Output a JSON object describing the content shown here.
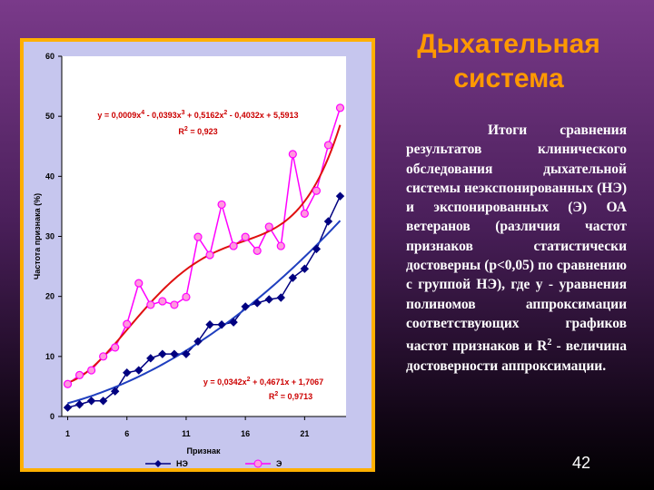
{
  "title": "Дыхательная система",
  "text_parts": [
    "Итоги сравнения результатов клинического обследования дыхательной системы неэкспонированных (НЭ) и экспонированных (Э) ОА ветеранов (различия частот признаков статистически достоверны (p<0,05) по сравнению с группой НЭ), где у - уравнения полиномов аппроксимации соответствующих графиков частот признаков и R",
    "2",
    " - величина достоверности аппроксимации."
  ],
  "page_number": "42",
  "chart_data": {
    "type": "line",
    "x_label": "Признак",
    "y_label": "Частота признака (%)",
    "x": [
      1,
      2,
      3,
      4,
      5,
      6,
      7,
      8,
      9,
      10,
      11,
      12,
      13,
      14,
      15,
      16,
      17,
      18,
      19,
      20,
      21,
      22,
      23,
      24
    ],
    "xlim": [
      0.5,
      24.5
    ],
    "xticks": [
      1,
      6,
      11,
      16,
      21
    ],
    "ylim": [
      0,
      60
    ],
    "yticks": [
      0,
      10,
      20,
      30,
      40,
      50,
      60
    ],
    "series": [
      {
        "name": "НЭ",
        "color": "#000080",
        "marker": "diamond",
        "values": [
          1.5,
          2.0,
          2.6,
          2.6,
          4.2,
          7.3,
          7.7,
          9.7,
          10.4,
          10.4,
          10.4,
          12.5,
          15.3,
          15.3,
          15.7,
          18.3,
          18.9,
          19.5,
          19.8,
          23.1,
          24.6,
          27.9,
          32.5,
          36.7
        ],
        "trendline": {
          "color": "#1f3fbf",
          "coefficients": [
            0.0342,
            0.4671,
            1.7067
          ],
          "equation_parts": [
            "y = 0,0342x",
            "2",
            " + 0,4671x + 1,7067"
          ],
          "r2_parts": [
            "R",
            "2",
            " = 0,9713"
          ]
        }
      },
      {
        "name": "Э",
        "color": "#ff00ff",
        "marker": "circle",
        "values": [
          5.4,
          6.9,
          7.7,
          10.0,
          11.5,
          15.4,
          22.2,
          18.6,
          19.2,
          18.6,
          19.9,
          29.9,
          26.9,
          35.3,
          28.4,
          29.9,
          27.6,
          31.6,
          28.4,
          43.7,
          33.8,
          37.6,
          45.2,
          51.4
        ],
        "trendline": {
          "color": "#e01010",
          "coefficients": [
            0.0009,
            -0.0393,
            0.5162,
            -0.4032,
            5.5913
          ],
          "equation_parts": [
            "y = 0,0009x",
            "4",
            " - 0,0393x",
            "3",
            " + 0,5162x",
            "2",
            " - 0,4032x + 5,5913"
          ],
          "r2_parts": [
            "R",
            "2",
            " = 0,923"
          ]
        }
      }
    ]
  }
}
